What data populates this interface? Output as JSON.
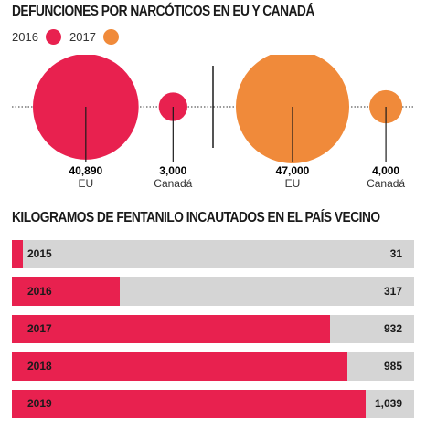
{
  "titles": {
    "deaths": "DEFUNCIONES POR NARCÓTICOS EN EU Y CANADÁ",
    "fentanyl": "KILOGRAMOS DE FENTANILO INCAUTADOS EN EL PAÍS VECINO"
  },
  "colors": {
    "y2016": "#e8214f",
    "y2017": "#f08a3a",
    "bar_bg": "#d5d5d5"
  },
  "chart_data": [
    {
      "type": "scatter",
      "title": "DEFUNCIONES POR NARCÓTICOS EN EU Y CANADÁ",
      "legend": [
        {
          "name": "2016",
          "color": "#e8214f"
        },
        {
          "name": "2017",
          "color": "#f08a3a"
        }
      ],
      "series": [
        {
          "name": "2016",
          "points": [
            {
              "category": "EU",
              "value": 40890,
              "label": "40,890"
            },
            {
              "category": "Canadá",
              "value": 3000,
              "label": "3,000"
            }
          ]
        },
        {
          "name": "2017",
          "points": [
            {
              "category": "EU",
              "value": 47000,
              "label": "47,000"
            },
            {
              "category": "Canadá",
              "value": 4000,
              "label": "4,000"
            }
          ]
        }
      ]
    },
    {
      "type": "bar",
      "title": "KILOGRAMOS DE FENTANILO INCAUTADOS EN EL PAÍS VECINO",
      "categories": [
        "2015",
        "2016",
        "2017",
        "2018",
        "2019"
      ],
      "values": [
        31,
        317,
        932,
        985,
        1039
      ],
      "value_labels": [
        "31",
        "317",
        "932",
        "985",
        "1,039"
      ],
      "xlim": [
        0,
        1180
      ]
    }
  ]
}
